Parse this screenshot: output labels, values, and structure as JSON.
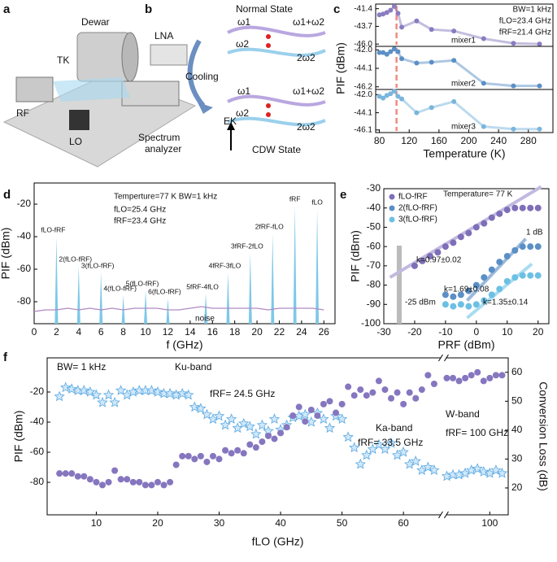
{
  "panel_labels": [
    "a",
    "b",
    "c",
    "d",
    "e",
    "f"
  ],
  "panel_a": {
    "labels": [
      "Dewar",
      "LNA",
      "TK",
      "RF",
      "LO"
    ],
    "analyzer_lines": [
      "Spectrum",
      "analyzer"
    ]
  },
  "panel_b": {
    "normal": "Normal State",
    "cdw": "CDW State",
    "cooling": "Cooling",
    "ek": "EK",
    "w1": "ω1",
    "w2": "ω2",
    "sum": "ω1+ω2",
    "harm": "2ω2"
  },
  "chart_data": [
    {
      "type": "line",
      "xlim": [
        75,
        313
      ],
      "ylim": [
        -46.3,
        -40.8
      ],
      "yticks": [
        -41.4,
        -43.7,
        {
          "value": -46,
          "label": "-46.0"
        }
      ],
      "vline": 103,
      "annotations": [
        "BW=1 kHz",
        "fLO=23.4 GHz",
        "fRF=21.4 GHz",
        "mixer1"
      ],
      "x": [
        80,
        85,
        90,
        95,
        100,
        105,
        110,
        130,
        150,
        180,
        220,
        260,
        295
      ],
      "series": [
        {
          "color": "#8a7cc0",
          "values": [
            -42.2,
            -42.1,
            -41.9,
            -41.6,
            -41.1,
            -42.0,
            -43.8,
            -43.0,
            -44.1,
            -44.3,
            -45.3,
            -45.9,
            -46.0
          ]
        }
      ]
    },
    {
      "type": "line",
      "xlim": [
        75,
        313
      ],
      "ylim": [
        -46.5,
        -41.6
      ],
      "yticks": [
        {
          "value": -42,
          "label": "-42.0"
        },
        -44.1,
        -46.2
      ],
      "vline": 103,
      "ylabel": "PIF (dBm)",
      "annotations": [
        "mixer2"
      ],
      "x": [
        80,
        85,
        90,
        95,
        100,
        105,
        110,
        130,
        150,
        180,
        220,
        260,
        295
      ],
      "series": [
        {
          "color": "#5b8fc6",
          "values": [
            -42.3,
            -42.3,
            -42.5,
            -42.2,
            -41.9,
            -42.2,
            -43.0,
            -43.5,
            -43.4,
            -43.2,
            -45.8,
            -46.1,
            -46.1
          ]
        }
      ]
    },
    {
      "type": "line",
      "xlim": [
        75,
        313
      ],
      "ylim": [
        -46.4,
        -41.4
      ],
      "yticks": [
        {
          "value": -42,
          "label": "-42.0"
        },
        -44.1,
        -46.1
      ],
      "vline": 103,
      "xticks": [
        80,
        120,
        160,
        200,
        240,
        280
      ],
      "xlabel": "Temperature (K)",
      "annotations": [
        "mixer3"
      ],
      "x": [
        80,
        85,
        90,
        95,
        100,
        105,
        110,
        130,
        150,
        180,
        220,
        260,
        295
      ],
      "series": [
        {
          "color": "#79b6dc",
          "values": [
            -42.2,
            -42.4,
            -42.1,
            -41.9,
            -41.6,
            -42.2,
            -42.5,
            -44.1,
            -43.5,
            -42.8,
            -45.7,
            -46.0,
            -46.0
          ]
        }
      ]
    },
    {
      "type": "spectrum",
      "xlim": [
        0,
        27
      ],
      "ylim": [
        -93.5,
        -7
      ],
      "xticks": [
        0,
        2,
        4,
        6,
        8,
        10,
        12,
        14,
        16,
        18,
        20,
        22,
        24,
        26
      ],
      "yticks": [
        -80,
        -60,
        -40,
        -20
      ],
      "xlabel": "f (GHz)",
      "ylabel": "PIF (dBm)",
      "annotations": [
        "Temperture=77 K  BW=1 kHz",
        "fLO=25.4 GHz",
        "fRF=23.4 GHz"
      ],
      "peaks": {
        "color": "#7ec8e8",
        "x": [
          2,
          4,
          6,
          8,
          10,
          12,
          15.4,
          17.4,
          19.4,
          21.4,
          23.4,
          25.4
        ],
        "values": [
          -40,
          -58,
          -62,
          -76,
          -73,
          -78,
          -75,
          -62,
          -50,
          -38,
          -21,
          -23
        ],
        "labels": [
          "fLO-fRF",
          "2(fLO-fRF)",
          "3(fLO-fRF)",
          "4(fLO-fRF)",
          "5(fLO-fRF)",
          "6(fLO-fRF)",
          "5fRF-4fLO",
          "4fRF-3fLO",
          "3fRF-2fLO",
          "2fRF-fLO",
          "fRF",
          "fLO"
        ]
      },
      "series": [
        {
          "name": "noise",
          "color": "#b08ac4",
          "x": [
            0,
            1,
            2,
            3,
            4,
            5,
            6,
            7,
            8,
            9,
            10,
            11,
            12,
            13,
            14,
            15,
            16,
            17,
            18,
            19,
            20,
            21,
            22,
            23,
            24,
            25,
            26
          ],
          "values": [
            -86,
            -85,
            -85,
            -84,
            -85,
            -84,
            -85,
            -84,
            -85,
            -84,
            -84,
            -84,
            -85,
            -85,
            -84,
            -83,
            -84,
            -84,
            -84,
            -84,
            -84,
            -85,
            -84,
            -84,
            -84,
            -84,
            -85
          ]
        }
      ]
    },
    {
      "type": "scatter",
      "xlim": [
        -30,
        23.5
      ],
      "ylim": [
        -100,
        -30
      ],
      "xticks": [
        -30,
        -20,
        -10,
        0,
        10,
        20
      ],
      "yticks": [
        -100,
        -90,
        -80,
        -70,
        -60,
        -50,
        -40,
        -30
      ],
      "xlabel": "PRF (dBm)",
      "ylabel": "PIF (dBm)",
      "legend": "top-left",
      "shade_x": -25,
      "annotations": [
        "Temperature= 77 K",
        "k=0.97±0.02",
        "k=1.69±0.08",
        "k=1.35±0.14",
        "-25 dBm",
        "1 dB"
      ],
      "series": [
        {
          "name": "fLO-fRF",
          "color": "#7e6fb8",
          "x": [
            -20,
            -17.5,
            -15,
            -12.5,
            -10,
            -7.5,
            -5,
            -2.5,
            0,
            2.5,
            5,
            7.5,
            10,
            12.5,
            15,
            17.5,
            20
          ],
          "values": [
            -70,
            -67.5,
            -65,
            -63,
            -60,
            -58,
            -55,
            -53,
            -50,
            -48,
            -45,
            -43,
            -41,
            -40,
            -40,
            -40,
            -40
          ]
        },
        {
          "name": "2(fLO-fRF)",
          "color": "#5b8fc6",
          "x": [
            -10,
            -7.5,
            -5,
            -2.5,
            0,
            2.5,
            5,
            7.5,
            10,
            12.5,
            15,
            17.5,
            20
          ],
          "values": [
            -85,
            -86,
            -85,
            -83,
            -80,
            -76,
            -72,
            -68,
            -65,
            -62,
            -60,
            -60,
            -60
          ]
        },
        {
          "name": "3(fLO-fRF)",
          "color": "#6cc0e4",
          "x": [
            -10,
            -7.5,
            -5,
            -2.5,
            0,
            2.5,
            5,
            7.5,
            10,
            12.5,
            15,
            17.5,
            20
          ],
          "values": [
            -90,
            -91,
            -90,
            -91,
            -90,
            -88,
            -85,
            -82,
            -78,
            -76,
            -75,
            -75,
            -75
          ]
        }
      ],
      "fits": [
        {
          "color": "#c2b9e0",
          "x": [
            -28,
            21
          ],
          "values": [
            -76,
            -29
          ]
        },
        {
          "color": "#9ab9dc",
          "x": [
            -3,
            16
          ],
          "values": [
            -88,
            -56
          ]
        },
        {
          "color": "#a8dcf0",
          "x": [
            -3,
            18
          ],
          "values": [
            -97,
            -69
          ]
        }
      ]
    },
    {
      "type": "dual",
      "xlim": [
        2,
        103
      ],
      "xbreak": [
        66,
        93
      ],
      "xticks": [
        10,
        20,
        30,
        40,
        50,
        60,
        100
      ],
      "ylim": [
        -101.6,
        2.7
      ],
      "yticks": [
        -80,
        -60,
        -40,
        -20
      ],
      "y2lim": [
        10.7,
        65
      ],
      "y2ticks": [
        20,
        30,
        40,
        50,
        60
      ],
      "xlabel": "fLO (GHz)",
      "ylabel": "PIF (dBm)",
      "y2label": "Conversion Loss (dB)",
      "annotations": [
        "BW= 1 kHz",
        "Ku-band",
        "fRF= 24.5 GHz",
        "Ka-band",
        "fRF= 33.5 GHz",
        "W-band",
        "fRF= 100 GHz"
      ],
      "x": [
        4,
        5,
        6,
        7,
        8,
        9,
        10,
        11,
        12,
        13,
        14,
        15,
        16,
        17,
        18,
        19,
        20,
        21,
        22,
        23,
        24,
        25,
        26,
        27,
        28,
        29,
        30,
        31,
        32,
        33,
        34,
        35,
        36,
        37,
        38,
        39,
        40,
        41,
        42,
        43,
        44,
        45,
        46,
        47,
        48,
        49,
        50,
        51,
        52,
        53,
        54,
        55,
        56,
        57,
        58,
        59,
        60,
        61,
        62,
        63,
        64,
        65,
        93,
        94,
        95,
        96,
        97,
        98,
        99,
        100,
        101,
        102
      ],
      "series": [
        {
          "color": "#5aa7e0",
          "marker": "star",
          "values": [
            -23,
            -17,
            -18,
            -19,
            -19,
            -20,
            -22,
            -27,
            -22,
            -27,
            -19,
            -22,
            -20,
            -19,
            -19,
            -19,
            -20,
            -21,
            -21,
            -22,
            -21,
            -22,
            -30,
            -31,
            -35,
            -38,
            -36,
            -42,
            -38,
            -44,
            -41,
            -43,
            -48,
            -42,
            -46,
            -38,
            -45,
            -42,
            -37,
            -36,
            -35,
            -40,
            -34,
            -38,
            -44,
            -36,
            -38,
            -50,
            -57,
            -68,
            -62,
            -58,
            -55,
            -58,
            -54,
            -62,
            -60,
            -68,
            -66,
            -72,
            -70,
            -72,
            -76,
            -75,
            -75,
            -74,
            -72,
            -71,
            -73,
            -74,
            -72,
            -74
          ]
        },
        {
          "color": "#8676bf",
          "marker": "circle",
          "axis": "y2",
          "values": [
            25,
            25,
            25,
            24,
            24,
            23,
            22,
            21,
            22,
            26,
            23,
            23,
            22,
            22,
            21,
            21,
            22,
            21,
            22,
            28,
            31,
            31,
            30,
            31,
            29,
            31,
            30,
            33,
            32,
            33,
            32,
            35,
            34,
            36,
            38,
            37,
            39,
            41,
            45,
            48,
            43,
            47,
            45,
            49,
            50,
            46,
            49,
            55,
            52,
            54,
            52,
            53,
            57,
            54,
            51,
            53,
            49,
            53,
            51,
            54,
            59,
            56,
            58,
            58,
            57,
            58,
            59,
            60,
            57,
            58,
            59,
            59
          ]
        }
      ]
    }
  ]
}
